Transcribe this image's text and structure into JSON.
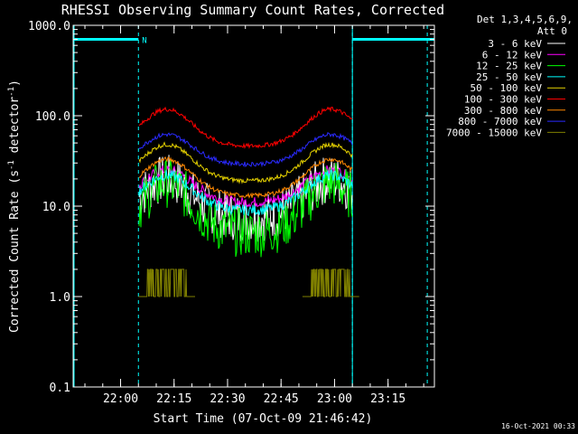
{
  "chart_data": {
    "type": "line",
    "title": "RHESSI Observing Summary Count Rates, Corrected",
    "xlabel": "Start Time (07-Oct-09 21:46:42)",
    "ylabel": "Corrected Count Rate (s⁻¹ detector⁻¹)",
    "ylabel_parts": {
      "main": "Corrected Count Rate (s",
      "sup1": "-1",
      "mid": " detector",
      "sup2": "-1",
      "end": ")"
    },
    "y_scale": "log",
    "ylim": [
      0.1,
      1000
    ],
    "xlim": [
      "21:46:42",
      "23:28:00"
    ],
    "x_ticks": [
      "22:00",
      "22:15",
      "22:30",
      "22:45",
      "23:00",
      "23:15"
    ],
    "y_ticks": [
      "0.1",
      "1.0",
      "10.0",
      "100.0",
      "1000.0"
    ],
    "legend_header": [
      "Det 1,3,4,5,6,9,",
      "Att 0"
    ],
    "legend_position": "right",
    "timestamp": "16-Oct-2021 00:33",
    "night_flag_label": "N",
    "night_intervals": [
      [
        "21:46:42",
        "22:05:00"
      ],
      [
        "23:05:00",
        "23:28:00"
      ]
    ],
    "shaded_markers": [
      "22:05",
      "23:05",
      "23:26"
    ],
    "series": [
      {
        "name": "3 - 6 keV",
        "color": "#ffffff",
        "base": 7.5,
        "peak": 20
      },
      {
        "name": "6 - 12 keV",
        "color": "#ff00ff",
        "base": 11,
        "peak": 25
      },
      {
        "name": "12 - 25 keV",
        "color": "#00ff00",
        "base": 5,
        "peak": 18
      },
      {
        "name": "25 - 50 keV",
        "color": "#00ffff",
        "base": 9,
        "peak": 22
      },
      {
        "name": "50 - 100 keV",
        "color": "#e6d200",
        "base": 19,
        "peak": 48
      },
      {
        "name": "100 - 300 keV",
        "color": "#ff0000",
        "base": 46,
        "peak": 118
      },
      {
        "name": "300 - 800 keV",
        "color": "#ff8800",
        "base": 13,
        "peak": 33
      },
      {
        "name": "800 - 7000 keV",
        "color": "#2a2aff",
        "base": 29,
        "peak": 62
      },
      {
        "name": "7000 - 15000 keV",
        "color": "#808000",
        "base": 1,
        "peak": 2
      }
    ]
  }
}
